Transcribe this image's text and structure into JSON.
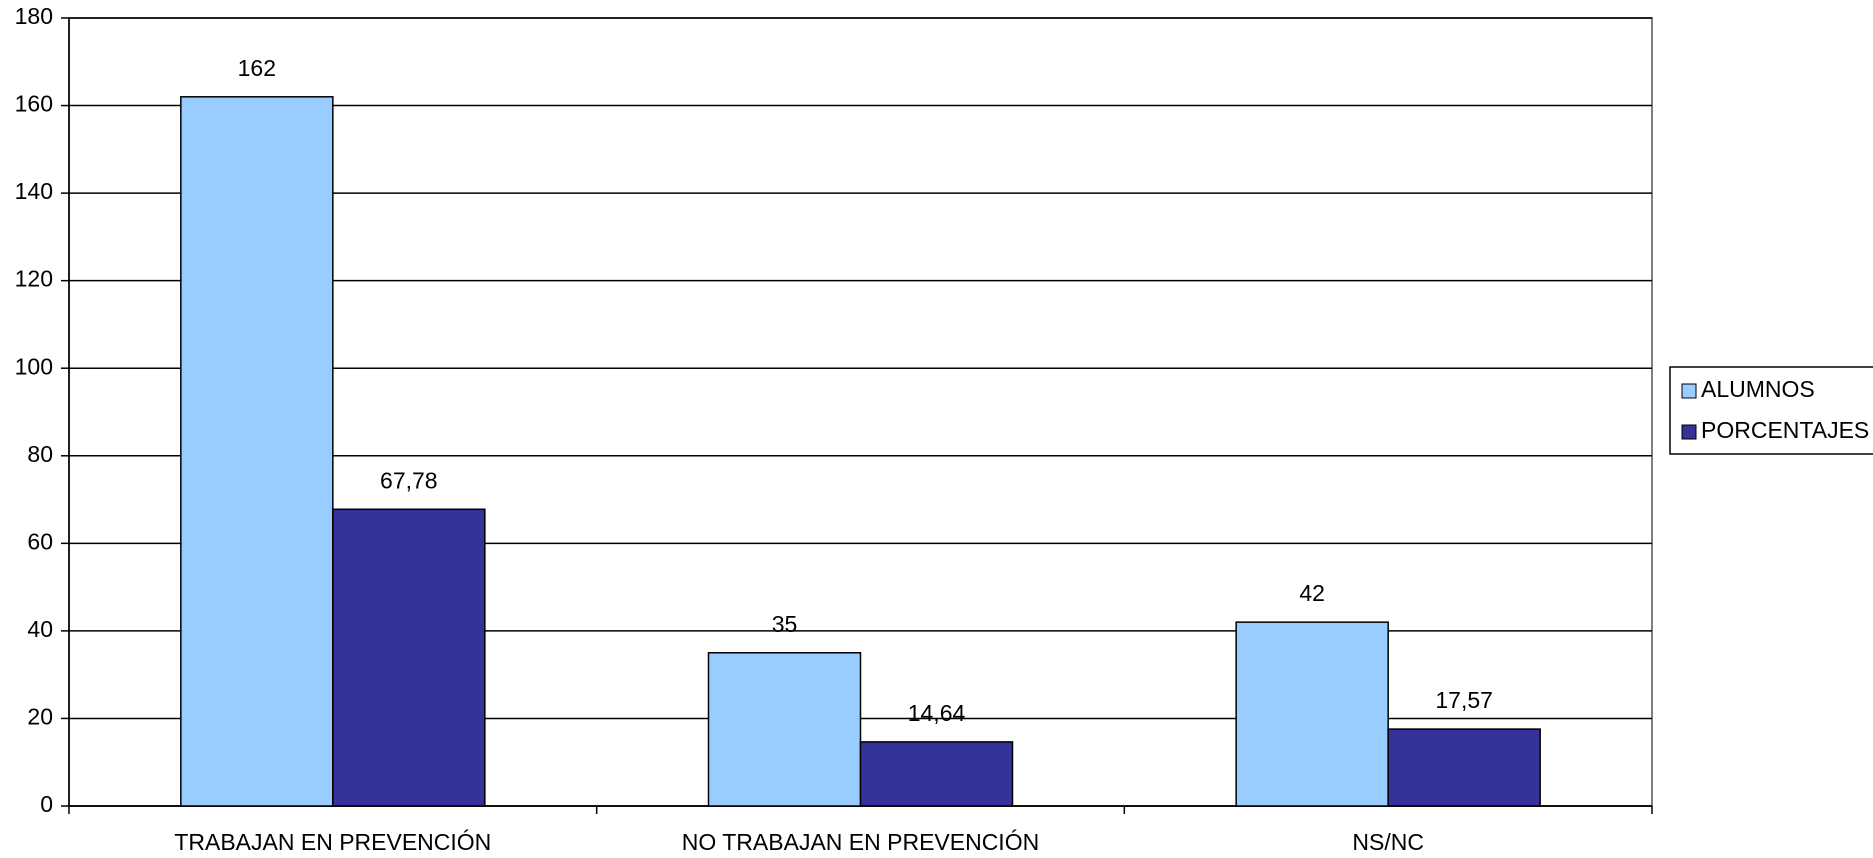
{
  "chart_data": {
    "type": "bar",
    "categories": [
      "TRABAJAN EN PREVENCIÓN",
      "NO TRABAJAN EN PREVENCIÓN",
      "NS/NC"
    ],
    "series": [
      {
        "name": "ALUMNOS",
        "color": "#99ccff",
        "values": [
          162,
          35,
          42
        ]
      },
      {
        "name": "PORCENTAJES",
        "color": "#333399",
        "values": [
          67.78,
          14.64,
          17.57
        ],
        "value_labels": [
          "67,78",
          "14,64",
          "17,57"
        ]
      }
    ],
    "ylim": [
      0,
      180
    ],
    "yticks": [
      0,
      20,
      40,
      60,
      80,
      100,
      120,
      140,
      160,
      180
    ],
    "grid": true,
    "legend": "right"
  }
}
